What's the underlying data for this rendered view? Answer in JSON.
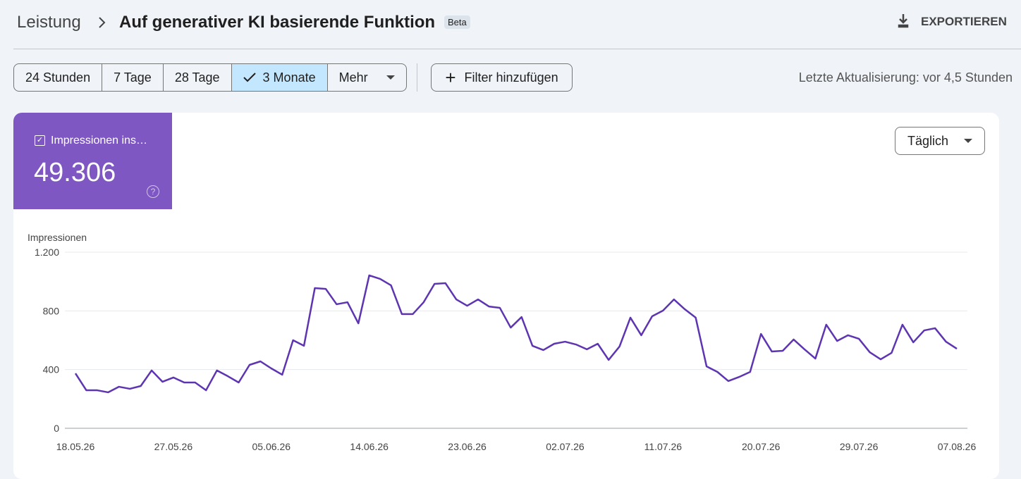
{
  "header": {
    "breadcrumb": "Leistung",
    "title": "Auf generativer KI basierende Funktion",
    "badge": "Beta",
    "export": "EXPORTIEREN"
  },
  "filters": {
    "ranges": [
      "24 Stunden",
      "7 Tage",
      "28 Tage",
      "3 Monate",
      "Mehr"
    ],
    "selected": 3,
    "add_filter": "Filter hinzufügen",
    "last_update": "Letzte Aktualisierung: vor 4,5 Stunden"
  },
  "metric": {
    "label": "Impressionen ins…",
    "value": "49.306"
  },
  "granularity": "Täglich",
  "chart_data": {
    "type": "line",
    "ylabel": "Impressionen",
    "categories": [
      "18.05.26",
      null,
      null,
      null,
      null,
      null,
      null,
      null,
      null,
      "27.05.26",
      null,
      null,
      null,
      null,
      null,
      null,
      null,
      null,
      "05.06.26",
      null,
      null,
      null,
      null,
      null,
      null,
      null,
      null,
      "14.06.26",
      null,
      null,
      null,
      null,
      null,
      null,
      null,
      null,
      "23.06.26",
      null,
      null,
      null,
      null,
      null,
      null,
      null,
      null,
      "02.07.26",
      null,
      null,
      null,
      null,
      null,
      null,
      null,
      null,
      "11.07.26",
      null,
      null,
      null,
      null,
      null,
      null,
      null,
      null,
      "20.07.26",
      null,
      null,
      null,
      null,
      null,
      null,
      null,
      null,
      "29.07.26",
      null,
      null,
      null,
      null,
      null,
      null,
      null,
      null,
      "07.08.26"
    ],
    "series": [
      {
        "color": "#5e35b1",
        "values": [
          374,
          259,
          259,
          245,
          283,
          269,
          288,
          394,
          317,
          346,
          312,
          312,
          259,
          394,
          355,
          312,
          432,
          456,
          408,
          365,
          600,
          562,
          955,
          950,
          845,
          859,
          715,
          1042,
          1018,
          974,
          778,
          778,
          859,
          984,
          989,
          878,
          835,
          878,
          830,
          821,
          686,
          758,
          562,
          533,
          576,
          590,
          571,
          538,
          576,
          466,
          557,
          754,
          634,
          763,
          802,
          878,
          811,
          754,
          422,
          384,
          322,
          350,
          384,
          643,
          523,
          528,
          605,
          538,
          475,
          706,
          595,
          634,
          610,
          518,
          470,
          514,
          706,
          586,
          667,
          682,
          590,
          542
        ]
      }
    ],
    "ylim": [
      0,
      1200
    ],
    "yticks": [
      0,
      400,
      800,
      {
        "value": 1200,
        "label": "1.200"
      }
    ],
    "grid": true
  }
}
